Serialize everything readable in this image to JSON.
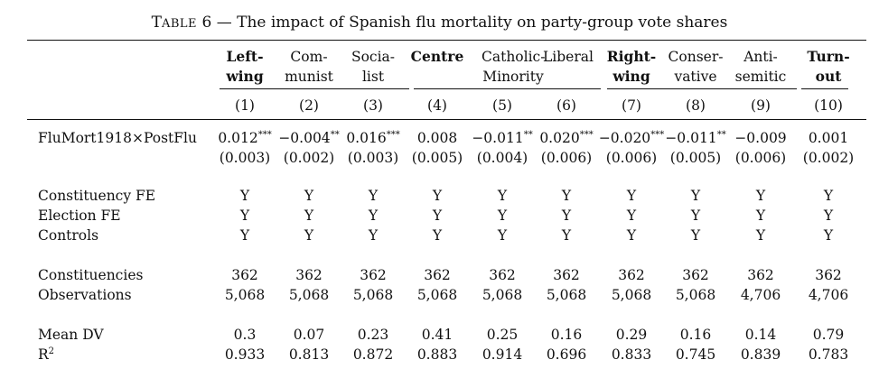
{
  "caption": {
    "label_first": "T",
    "label_rest": "ABLE",
    "number": "6",
    "dash": "—",
    "title": "The impact of Spanish flu mortality on party-group vote shares"
  },
  "header": {
    "columns": [
      {
        "line1": "Left-",
        "line2": "wing",
        "bold": true,
        "num": "(1)"
      },
      {
        "line1": "Com-",
        "line2": "munist",
        "bold": false,
        "num": "(2)"
      },
      {
        "line1": "Socia-",
        "line2": "list",
        "bold": false,
        "num": "(3)"
      },
      {
        "line1": "Centre",
        "line2": "",
        "bold": true,
        "num": "(4)"
      },
      {
        "line1": "Catholic-",
        "line2": "",
        "bold": false,
        "num": "(5)"
      },
      {
        "line1": "Liberal",
        "line2": "",
        "bold": false,
        "num": "(6)"
      },
      {
        "line1": "Right-",
        "line2": "wing",
        "bold": true,
        "num": "(7)"
      },
      {
        "line1": "Conser-",
        "line2": "vative",
        "bold": false,
        "num": "(8)"
      },
      {
        "line1": "Anti-",
        "line2": "semitic",
        "bold": false,
        "num": "(9)"
      },
      {
        "line1": "Turn-",
        "line2": "out",
        "bold": true,
        "num": "(10)"
      }
    ],
    "minority_label": "Minority"
  },
  "rows": {
    "flumort": {
      "label": "FluMort1918×PostFlu",
      "coefs": [
        "0.012",
        "−0.004",
        "0.016",
        "0.008",
        "−0.011",
        "0.020",
        "−0.020",
        "−0.011",
        "−0.009",
        "0.001"
      ],
      "stars": [
        "***",
        "**",
        "***",
        "",
        "**",
        "***",
        "***",
        "**",
        "",
        ""
      ],
      "ses": [
        "(0.003)",
        "(0.002)",
        "(0.003)",
        "(0.005)",
        "(0.004)",
        "(0.006)",
        "(0.006)",
        "(0.005)",
        "(0.006)",
        "(0.002)"
      ]
    },
    "constituency_fe": {
      "label": "Constituency FE",
      "values": [
        "Y",
        "Y",
        "Y",
        "Y",
        "Y",
        "Y",
        "Y",
        "Y",
        "Y",
        "Y"
      ]
    },
    "election_fe": {
      "label": "Election FE",
      "values": [
        "Y",
        "Y",
        "Y",
        "Y",
        "Y",
        "Y",
        "Y",
        "Y",
        "Y",
        "Y"
      ]
    },
    "controls": {
      "label": "Controls",
      "values": [
        "Y",
        "Y",
        "Y",
        "Y",
        "Y",
        "Y",
        "Y",
        "Y",
        "Y",
        "Y"
      ]
    },
    "constituencies": {
      "label": "Constituencies",
      "values": [
        "362",
        "362",
        "362",
        "362",
        "362",
        "362",
        "362",
        "362",
        "362",
        "362"
      ]
    },
    "observations": {
      "label": "Observations",
      "values": [
        "5,068",
        "5,068",
        "5,068",
        "5,068",
        "5,068",
        "5,068",
        "5,068",
        "5,068",
        "4,706",
        "4,706"
      ]
    },
    "mean_dv": {
      "label": "Mean DV",
      "values": [
        "0.3",
        "0.07",
        "0.23",
        "0.41",
        "0.25",
        "0.16",
        "0.29",
        "0.16",
        "0.14",
        "0.79"
      ]
    },
    "r2": {
      "label": "R",
      "label_sup": "2",
      "values": [
        "0.933",
        "0.813",
        "0.872",
        "0.883",
        "0.914",
        "0.696",
        "0.833",
        "0.745",
        "0.839",
        "0.783"
      ]
    }
  }
}
